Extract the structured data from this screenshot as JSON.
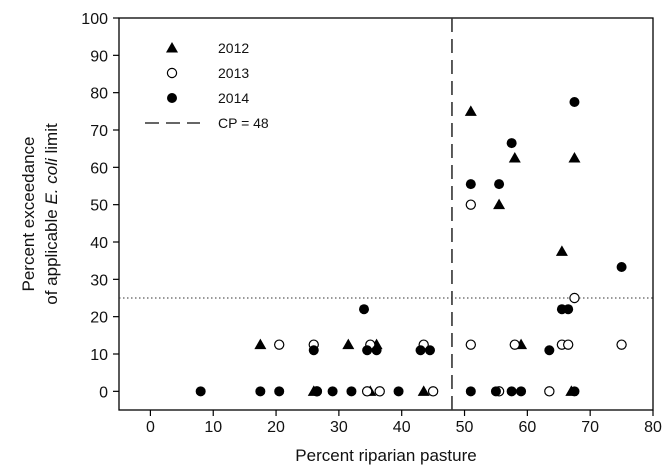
{
  "chart_data": {
    "type": "scatter",
    "title": "",
    "xlabel": "Percent riparian pasture",
    "ylabel_line1": "Percent exceedance",
    "ylabel_line2_prefix": "of applicable ",
    "ylabel_line2_italic": "E. coli",
    "ylabel_line2_suffix": " limit",
    "xlim": [
      -5,
      80
    ],
    "ylim": [
      -5,
      100
    ],
    "xticks": [
      0,
      10,
      20,
      30,
      40,
      50,
      60,
      70,
      80
    ],
    "yticks": [
      0,
      10,
      20,
      30,
      40,
      50,
      60,
      70,
      80,
      90,
      100
    ],
    "grid": false,
    "legend_position": "top-left",
    "reference_lines": [
      {
        "name": "CP = 48",
        "orientation": "vertical",
        "value": 48,
        "style": "dashed"
      },
      {
        "orientation": "horizontal",
        "value": 25,
        "style": "dotted"
      }
    ],
    "series": [
      {
        "name": "2012",
        "marker": "filled-triangle",
        "points": [
          [
            17.5,
            12.5
          ],
          [
            26,
            0
          ],
          [
            31.5,
            12.5
          ],
          [
            35,
            0
          ],
          [
            36,
            12.5
          ],
          [
            43.5,
            0
          ],
          [
            51,
            75
          ],
          [
            55.5,
            50
          ],
          [
            58,
            62.5
          ],
          [
            59,
            12.5
          ],
          [
            65.5,
            37.5
          ],
          [
            67,
            0
          ],
          [
            67.5,
            62.5
          ]
        ]
      },
      {
        "name": "2013",
        "marker": "open-circle",
        "points": [
          [
            20.5,
            12.5
          ],
          [
            26,
            12.5
          ],
          [
            26.5,
            0
          ],
          [
            34.5,
            0
          ],
          [
            35,
            12.5
          ],
          [
            36.5,
            0
          ],
          [
            43.5,
            12.5
          ],
          [
            45,
            0
          ],
          [
            51,
            50
          ],
          [
            51,
            12.5
          ],
          [
            55.5,
            0
          ],
          [
            58,
            12.5
          ],
          [
            63.5,
            0
          ],
          [
            65.5,
            12.5
          ],
          [
            66.5,
            12.5
          ],
          [
            67.5,
            25
          ],
          [
            75,
            12.5
          ]
        ]
      },
      {
        "name": "2014",
        "marker": "filled-circle",
        "points": [
          [
            8,
            0
          ],
          [
            17.5,
            0
          ],
          [
            20.5,
            0
          ],
          [
            26,
            11
          ],
          [
            26.5,
            0
          ],
          [
            29,
            0
          ],
          [
            32,
            0
          ],
          [
            34,
            22
          ],
          [
            34.5,
            11
          ],
          [
            36,
            11
          ],
          [
            39.5,
            0
          ],
          [
            43,
            11
          ],
          [
            44.5,
            11
          ],
          [
            51,
            55.5
          ],
          [
            51,
            0
          ],
          [
            55,
            0
          ],
          [
            55.5,
            55.5
          ],
          [
            57.5,
            66.5
          ],
          [
            57.5,
            0
          ],
          [
            59,
            0
          ],
          [
            63.5,
            11
          ],
          [
            65.5,
            22
          ],
          [
            66.5,
            22
          ],
          [
            67.5,
            77.5
          ],
          [
            67.5,
            0
          ],
          [
            75,
            33.3
          ]
        ]
      }
    ]
  }
}
